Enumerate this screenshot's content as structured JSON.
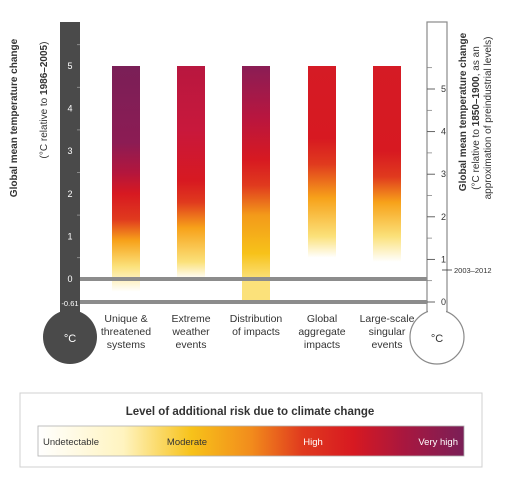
{
  "chart_data": {
    "type": "bar",
    "left_axis": {
      "label": "Global mean temperature change",
      "sublabel_pre": "(°C relative to ",
      "sublabel_bold": "1986–2005",
      "sublabel_post": ")",
      "ticks": [
        "5",
        "4",
        "3",
        "2",
        "1",
        "0",
        "-0.61"
      ],
      "range": [
        -0.61,
        5
      ],
      "bulb_label": "°C"
    },
    "right_axis": {
      "label": "Global mean temperature change",
      "sublabel_line1_pre": "(°C relative to ",
      "sublabel_line1_bold": "1850–1900",
      "sublabel_line1_post": ", as an",
      "sublabel_line2": "approximation of preindustrial levels)",
      "ticks": [
        "5",
        "4",
        "3",
        "2",
        "1",
        "0"
      ],
      "range": [
        0,
        5.61
      ],
      "marker_label": "2003–2012",
      "bulb_label": "°C"
    },
    "categories": [
      {
        "line1": "Unique &",
        "line2": "threatened",
        "line3": "systems"
      },
      {
        "line1": "Extreme",
        "line2": "weather",
        "line3": "events"
      },
      {
        "line1": "Distribution",
        "line2": "of impacts",
        "line3": ""
      },
      {
        "line1": "Global",
        "line2": "aggregate",
        "line3": "impacts"
      },
      {
        "line1": "Large-scale",
        "line2": "singular",
        "line3": "events"
      }
    ],
    "bars": [
      {
        "stops": [
          [
            -0.3,
            "#ffffff"
          ],
          [
            0.3,
            "#fbe17a"
          ],
          [
            0.9,
            "#f7a21a"
          ],
          [
            1.4,
            "#e03a1e"
          ],
          [
            2.0,
            "#d71921"
          ],
          [
            2.5,
            "#b3163d"
          ],
          [
            3.2,
            "#8c1c54"
          ],
          [
            5.0,
            "#7a1f57"
          ]
        ]
      },
      {
        "stops": [
          [
            0.0,
            "#ffffff"
          ],
          [
            0.4,
            "#fbe17a"
          ],
          [
            1.2,
            "#f7a21a"
          ],
          [
            1.8,
            "#e03a1e"
          ],
          [
            2.3,
            "#d71921"
          ],
          [
            3.5,
            "#c8183c"
          ],
          [
            5.0,
            "#b8173f"
          ]
        ]
      },
      {
        "stops": [
          [
            0.0,
            "#fbe17a"
          ],
          [
            0.6,
            "#f7c21a"
          ],
          [
            1.5,
            "#f39a1a"
          ],
          [
            2.2,
            "#e03a1e"
          ],
          [
            2.8,
            "#d71921"
          ],
          [
            3.8,
            "#b8163f"
          ],
          [
            5.0,
            "#8a1d55"
          ]
        ]
      },
      {
        "stops": [
          [
            0.5,
            "#ffffff"
          ],
          [
            1.0,
            "#fbe17a"
          ],
          [
            1.9,
            "#f7a21a"
          ],
          [
            2.7,
            "#e03a1e"
          ],
          [
            3.3,
            "#d71921"
          ],
          [
            5.0,
            "#d51b25"
          ]
        ]
      },
      {
        "stops": [
          [
            0.4,
            "#ffffff"
          ],
          [
            1.0,
            "#fbe17a"
          ],
          [
            1.8,
            "#f7a21a"
          ],
          [
            2.4,
            "#e03a1e"
          ],
          [
            3.0,
            "#d71921"
          ],
          [
            5.0,
            "#d51b25"
          ]
        ]
      }
    ],
    "bar_top": 5.0,
    "legend": {
      "title": "Level of additional risk due to climate change",
      "levels": [
        "Undetectable",
        "Moderate",
        "High",
        "Very high"
      ],
      "colors": [
        "#ffffff",
        "#f7c21a",
        "#d71921",
        "#7a1f57"
      ]
    }
  }
}
